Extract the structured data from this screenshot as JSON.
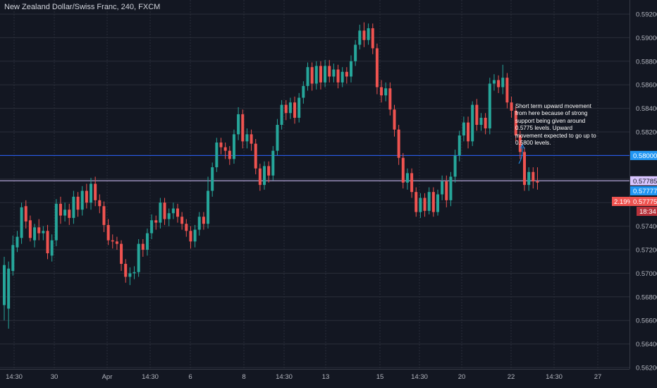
{
  "title": "New Zealand Dollar/Swiss Franc, 240, FXCM",
  "annotation": "Short term upward movement from here because of strong support being given around 0.5775 levels. Upward movement expected to go up to 0.5800 levels.",
  "colors": {
    "background": "#131722",
    "up": "#26a69a",
    "down": "#ef5350",
    "resistance_line": "#2962ff",
    "support_line": "#d8c5ff",
    "grid": "#2a2e39",
    "axis_text": "#b2b5be"
  },
  "chart_data": {
    "type": "candlestick",
    "y_ticks": [
      "0.59200",
      "0.59000",
      "0.58800",
      "0.58600",
      "0.58400",
      "0.58200",
      "0.58000",
      "0.57800",
      "0.57600",
      "0.57400",
      "0.57200",
      "0.57000",
      "0.56800",
      "0.56600",
      "0.56400",
      "0.56200"
    ],
    "ylim": [
      0.5618,
      0.5925
    ],
    "x_tick_labels": [
      "14:30",
      "30",
      "Apr",
      "14:30",
      "6",
      "8",
      "14:30",
      "13",
      "14:30",
      "15",
      "14:30",
      "20",
      "14:30",
      "22",
      "14:30",
      "27"
    ],
    "horizontal_lines": [
      {
        "name": "resistance",
        "value": 0.58,
        "label": "0.58000"
      },
      {
        "name": "support",
        "value": 0.57785,
        "label": "0.57785"
      }
    ],
    "price_tags": [
      {
        "name": "current-bid",
        "label": "0.57777",
        "color": "#2196f3"
      },
      {
        "name": "current-price",
        "label": "0.57775",
        "change": "2.19%",
        "color": "#ef5350"
      }
    ],
    "countdown": "18:34",
    "candles": [
      [
        0.5673,
        0.5707,
        0.566,
        0.5714
      ],
      [
        0.567,
        0.5704,
        0.5653,
        0.571
      ],
      [
        0.5702,
        0.5724,
        0.5698,
        0.5732
      ],
      [
        0.5722,
        0.5731,
        0.5718,
        0.5736
      ],
      [
        0.573,
        0.5756,
        0.5725,
        0.576
      ],
      [
        0.5757,
        0.5744,
        0.5738,
        0.5762
      ],
      [
        0.5745,
        0.573,
        0.5727,
        0.5749
      ],
      [
        0.5728,
        0.5739,
        0.5722,
        0.5742
      ],
      [
        0.5739,
        0.5734,
        0.5728,
        0.5746
      ],
      [
        0.5734,
        0.5736,
        0.5728,
        0.574
      ],
      [
        0.5736,
        0.5717,
        0.5712,
        0.5741
      ],
      [
        0.5715,
        0.5728,
        0.571,
        0.5733
      ],
      [
        0.5728,
        0.5759,
        0.5723,
        0.5763
      ],
      [
        0.5759,
        0.5749,
        0.5742,
        0.5765
      ],
      [
        0.5749,
        0.5754,
        0.5744,
        0.576
      ],
      [
        0.5754,
        0.5747,
        0.5741,
        0.5759
      ],
      [
        0.5747,
        0.5765,
        0.5742,
        0.577
      ],
      [
        0.5765,
        0.5754,
        0.5748,
        0.5769
      ],
      [
        0.5754,
        0.577,
        0.5749,
        0.5774
      ],
      [
        0.577,
        0.576,
        0.5755,
        0.5776
      ],
      [
        0.576,
        0.5776,
        0.5754,
        0.5781
      ],
      [
        0.5776,
        0.5762,
        0.5757,
        0.5782
      ],
      [
        0.5762,
        0.5757,
        0.5751,
        0.5767
      ],
      [
        0.5757,
        0.5741,
        0.5735,
        0.5761
      ],
      [
        0.5741,
        0.5728,
        0.5724,
        0.5746
      ],
      [
        0.5728,
        0.5727,
        0.5721,
        0.5733
      ],
      [
        0.5727,
        0.5725,
        0.572,
        0.5731
      ],
      [
        0.5725,
        0.5708,
        0.5702,
        0.5728
      ],
      [
        0.5708,
        0.5697,
        0.5692,
        0.5712
      ],
      [
        0.5697,
        0.57,
        0.569,
        0.5705
      ],
      [
        0.57,
        0.5701,
        0.5695,
        0.5706
      ],
      [
        0.5701,
        0.5725,
        0.5697,
        0.5729
      ],
      [
        0.5725,
        0.572,
        0.5714,
        0.5729
      ],
      [
        0.572,
        0.5734,
        0.5715,
        0.5738
      ],
      [
        0.5734,
        0.5745,
        0.5729,
        0.575
      ],
      [
        0.5745,
        0.5743,
        0.5737,
        0.5749
      ],
      [
        0.5743,
        0.576,
        0.5738,
        0.5764
      ],
      [
        0.576,
        0.5746,
        0.5741,
        0.5764
      ],
      [
        0.5746,
        0.5751,
        0.574,
        0.5755
      ],
      [
        0.5751,
        0.5755,
        0.5746,
        0.576
      ],
      [
        0.5755,
        0.5748,
        0.5743,
        0.5759
      ],
      [
        0.5748,
        0.5742,
        0.5737,
        0.5752
      ],
      [
        0.5742,
        0.5736,
        0.5731,
        0.5746
      ],
      [
        0.5736,
        0.5727,
        0.5721,
        0.574
      ],
      [
        0.5727,
        0.5737,
        0.5722,
        0.5741
      ],
      [
        0.5737,
        0.5748,
        0.5732,
        0.5752
      ],
      [
        0.5748,
        0.5742,
        0.5737,
        0.5752
      ],
      [
        0.5742,
        0.577,
        0.5738,
        0.5782
      ],
      [
        0.577,
        0.579,
        0.5765,
        0.5794
      ],
      [
        0.579,
        0.5811,
        0.5786,
        0.5815
      ],
      [
        0.5811,
        0.5807,
        0.5801,
        0.5815
      ],
      [
        0.5807,
        0.5804,
        0.5797,
        0.5811
      ],
      [
        0.5804,
        0.5797,
        0.5792,
        0.5808
      ],
      [
        0.5797,
        0.5818,
        0.5793,
        0.5822
      ],
      [
        0.5818,
        0.5835,
        0.5813,
        0.5841
      ],
      [
        0.5835,
        0.5812,
        0.5806,
        0.5839
      ],
      [
        0.5812,
        0.5818,
        0.5806,
        0.5823
      ],
      [
        0.5818,
        0.581,
        0.5804,
        0.5822
      ],
      [
        0.581,
        0.5789,
        0.5784,
        0.5814
      ],
      [
        0.5789,
        0.5775,
        0.577,
        0.5793
      ],
      [
        0.5775,
        0.5791,
        0.5771,
        0.5795
      ],
      [
        0.5791,
        0.5783,
        0.5777,
        0.5795
      ],
      [
        0.5783,
        0.5804,
        0.5779,
        0.5808
      ],
      [
        0.5804,
        0.5826,
        0.58,
        0.5831
      ],
      [
        0.5826,
        0.5843,
        0.5822,
        0.5847
      ],
      [
        0.5843,
        0.5836,
        0.583,
        0.5847
      ],
      [
        0.5836,
        0.5845,
        0.5831,
        0.5849
      ],
      [
        0.5845,
        0.5832,
        0.5827,
        0.585
      ],
      [
        0.5832,
        0.5849,
        0.5828,
        0.5853
      ],
      [
        0.5849,
        0.5859,
        0.5844,
        0.5863
      ],
      [
        0.5859,
        0.5875,
        0.5855,
        0.5879
      ],
      [
        0.5875,
        0.5861,
        0.5855,
        0.5879
      ],
      [
        0.5861,
        0.5876,
        0.5856,
        0.588
      ],
      [
        0.5876,
        0.5862,
        0.5856,
        0.588
      ],
      [
        0.5862,
        0.5876,
        0.5858,
        0.5881
      ],
      [
        0.5876,
        0.5867,
        0.5862,
        0.5881
      ],
      [
        0.5867,
        0.5873,
        0.5862,
        0.5878
      ],
      [
        0.5873,
        0.5862,
        0.5857,
        0.5877
      ],
      [
        0.5862,
        0.5871,
        0.5858,
        0.5875
      ],
      [
        0.5871,
        0.5867,
        0.5861,
        0.5875
      ],
      [
        0.5867,
        0.588,
        0.5862,
        0.5885
      ],
      [
        0.588,
        0.5894,
        0.5876,
        0.5898
      ],
      [
        0.5894,
        0.5906,
        0.589,
        0.5911
      ],
      [
        0.5906,
        0.5898,
        0.5892,
        0.5913
      ],
      [
        0.5898,
        0.5908,
        0.5894,
        0.5912
      ],
      [
        0.5908,
        0.5891,
        0.5886,
        0.5912
      ],
      [
        0.5891,
        0.5858,
        0.5852,
        0.5895
      ],
      [
        0.5858,
        0.5851,
        0.5845,
        0.5864
      ],
      [
        0.5851,
        0.5857,
        0.5846,
        0.5862
      ],
      [
        0.5857,
        0.5839,
        0.5834,
        0.5862
      ],
      [
        0.5839,
        0.5822,
        0.5816,
        0.5843
      ],
      [
        0.5822,
        0.5798,
        0.5792,
        0.5826
      ],
      [
        0.5798,
        0.5777,
        0.5772,
        0.5802
      ],
      [
        0.5777,
        0.5785,
        0.5771,
        0.5789
      ],
      [
        0.5785,
        0.5769,
        0.5764,
        0.5789
      ],
      [
        0.5769,
        0.5752,
        0.5748,
        0.5773
      ],
      [
        0.5752,
        0.5764,
        0.5747,
        0.5768
      ],
      [
        0.5764,
        0.5753,
        0.5748,
        0.5768
      ],
      [
        0.5753,
        0.5769,
        0.575,
        0.5773
      ],
      [
        0.5769,
        0.5752,
        0.5748,
        0.5773
      ],
      [
        0.5752,
        0.5767,
        0.5749,
        0.5771
      ],
      [
        0.5767,
        0.5778,
        0.5762,
        0.5783
      ],
      [
        0.5778,
        0.5762,
        0.5756,
        0.5783
      ],
      [
        0.5762,
        0.5782,
        0.5757,
        0.5786
      ],
      [
        0.5782,
        0.58,
        0.5777,
        0.5805
      ],
      [
        0.58,
        0.5817,
        0.5795,
        0.5821
      ],
      [
        0.5817,
        0.5828,
        0.5812,
        0.5833
      ],
      [
        0.5828,
        0.5812,
        0.5806,
        0.5833
      ],
      [
        0.5812,
        0.5843,
        0.5808,
        0.5846
      ],
      [
        0.5843,
        0.5826,
        0.5821,
        0.5848
      ],
      [
        0.5826,
        0.5832,
        0.5821,
        0.5836
      ],
      [
        0.5832,
        0.5823,
        0.5818,
        0.5836
      ],
      [
        0.5823,
        0.5861,
        0.5818,
        0.5866
      ],
      [
        0.5861,
        0.5864,
        0.5855,
        0.5869
      ],
      [
        0.5864,
        0.5858,
        0.5853,
        0.5868
      ],
      [
        0.5858,
        0.5866,
        0.5852,
        0.5877
      ],
      [
        0.5866,
        0.5845,
        0.584,
        0.587
      ],
      [
        0.5845,
        0.5838,
        0.5832,
        0.585
      ],
      [
        0.5838,
        0.5817,
        0.5812,
        0.5842
      ],
      [
        0.5817,
        0.5803,
        0.5797,
        0.5821
      ],
      [
        0.5803,
        0.5775,
        0.577,
        0.5807
      ],
      [
        0.5775,
        0.5786,
        0.577,
        0.579
      ],
      [
        0.5786,
        0.5778,
        0.5772,
        0.579
      ],
      [
        0.5778,
        0.5777,
        0.5771,
        0.579
      ]
    ]
  }
}
